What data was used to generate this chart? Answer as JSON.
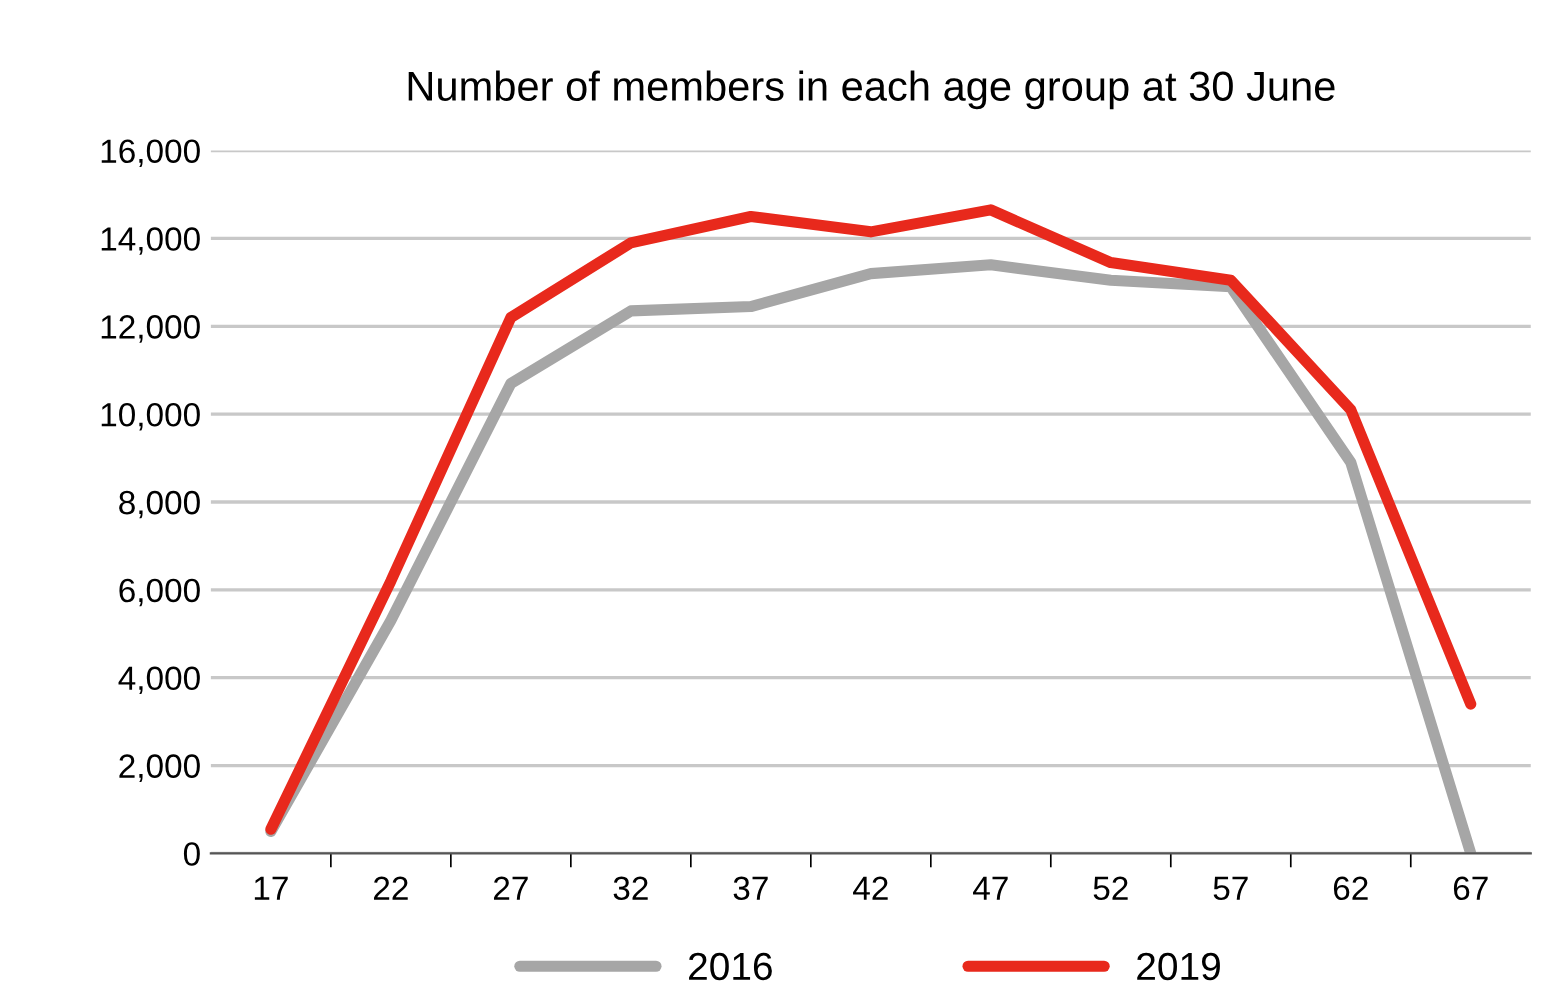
{
  "chart_data": {
    "type": "line",
    "title": "Number of members in each age group at 30 June",
    "categories": [
      "17",
      "22",
      "27",
      "32",
      "37",
      "42",
      "47",
      "52",
      "57",
      "62",
      "67"
    ],
    "series": [
      {
        "name": "2016",
        "color": "#a6a6a6",
        "values": [
          500,
          5300,
          10700,
          12350,
          12450,
          13200,
          13400,
          13050,
          12900,
          8900,
          0
        ]
      },
      {
        "name": "2019",
        "color": "#e8291c",
        "values": [
          550,
          6200,
          12200,
          13900,
          14500,
          14150,
          14650,
          13450,
          13050,
          10100,
          3400
        ]
      }
    ],
    "ylim": [
      0,
      16000
    ],
    "yticks": [
      {
        "value": 0,
        "label": "0"
      },
      {
        "value": 2000,
        "label": "2,000"
      },
      {
        "value": 4000,
        "label": "4,000"
      },
      {
        "value": 6000,
        "label": "6,000"
      },
      {
        "value": 8000,
        "label": "8,000"
      },
      {
        "value": 10000,
        "label": "10,000"
      },
      {
        "value": 12000,
        "label": "12,000"
      },
      {
        "value": 14000,
        "label": "14,000"
      },
      {
        "value": 16000,
        "label": "16,000"
      }
    ],
    "grid": "y",
    "legend": "bottom",
    "marker": "none",
    "line_style": "solid"
  }
}
